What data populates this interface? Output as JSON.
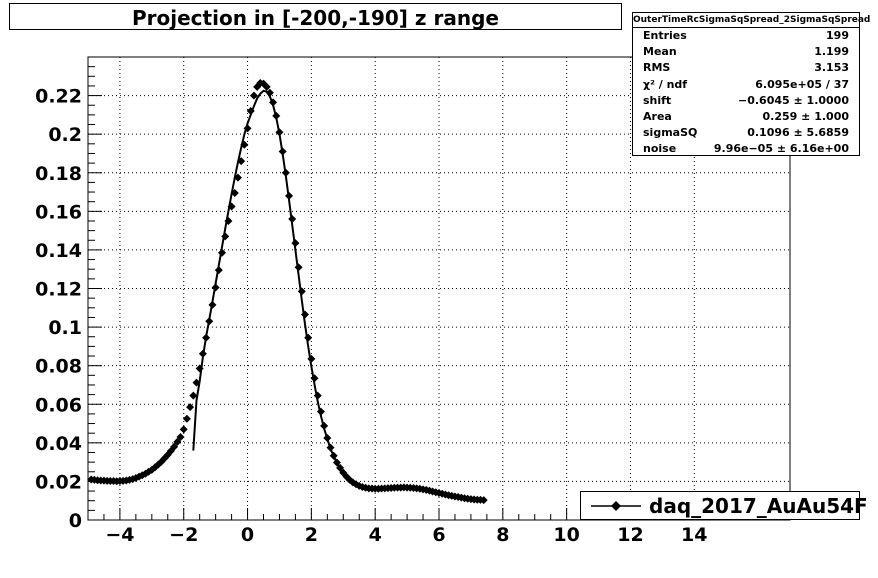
{
  "title": "Projection in [-200,-190] z range",
  "stats": {
    "name": "OuterTimeRcSigmaSqSpread_2SigmaSqSpread",
    "rows": [
      {
        "label": "Entries",
        "value": "199"
      },
      {
        "label": "Mean",
        "value": "1.199"
      },
      {
        "label": "RMS",
        "value": "3.153"
      },
      {
        "label": "χ² / ndf",
        "value": "6.095e+05 / 37"
      },
      {
        "label": "shift",
        "value": "−0.6045 ± 1.0000"
      },
      {
        "label": "Area",
        "value": "0.259 ± 1.000"
      },
      {
        "label": "sigmaSQ",
        "value": "0.1096 ± 5.6859"
      },
      {
        "label": "noise",
        "value": "9.96e−05 ± 6.16e+00"
      }
    ]
  },
  "legend": {
    "label": "daq_2017_AuAu54F"
  },
  "chart_data": {
    "type": "scatter",
    "title": "Projection in [-200,-190] z range",
    "xlim": [
      -5,
      17
    ],
    "ylim": [
      0,
      0.24
    ],
    "grid": true,
    "legend_position": "bottom-right",
    "x_ticks": [
      -4,
      -2,
      0,
      2,
      4,
      6,
      8,
      10,
      12,
      14
    ],
    "x_tick_labels": [
      "−4",
      "−2",
      "0",
      "2",
      "4",
      "6",
      "8",
      "10",
      "12",
      "14"
    ],
    "y_ticks": [
      0,
      0.02,
      0.04,
      0.06,
      0.08,
      0.1,
      0.12,
      0.14,
      0.16,
      0.18,
      0.2,
      0.22
    ],
    "y_tick_labels": [
      "0",
      "0.02",
      "0.04",
      "0.06",
      "0.08",
      "0.1",
      "0.12",
      "0.14",
      "0.16",
      "0.18",
      "0.2",
      "0.22"
    ],
    "series": [
      {
        "name": "daq_2017_AuAu54F",
        "kind": "markers",
        "points": [
          [
            -4.9,
            0.021
          ],
          [
            -4.8,
            0.0208
          ],
          [
            -4.7,
            0.0206
          ],
          [
            -4.6,
            0.0205
          ],
          [
            -4.5,
            0.0204
          ],
          [
            -4.4,
            0.0203
          ],
          [
            -4.3,
            0.0202
          ],
          [
            -4.2,
            0.0202
          ],
          [
            -4.1,
            0.0201
          ],
          [
            -4.0,
            0.0202
          ],
          [
            -3.9,
            0.0203
          ],
          [
            -3.8,
            0.0205
          ],
          [
            -3.7,
            0.0208
          ],
          [
            -3.6,
            0.0212
          ],
          [
            -3.5,
            0.0218
          ],
          [
            -3.4,
            0.0225
          ],
          [
            -3.3,
            0.0232
          ],
          [
            -3.2,
            0.024
          ],
          [
            -3.1,
            0.025
          ],
          [
            -3.0,
            0.026
          ],
          [
            -2.9,
            0.0273
          ],
          [
            -2.8,
            0.0287
          ],
          [
            -2.7,
            0.0302
          ],
          [
            -2.6,
            0.032
          ],
          [
            -2.5,
            0.0338
          ],
          [
            -2.4,
            0.0358
          ],
          [
            -2.3,
            0.038
          ],
          [
            -2.2,
            0.0405
          ],
          [
            -2.1,
            0.043
          ],
          [
            -2.0,
            0.047
          ],
          [
            -1.9,
            0.0525
          ],
          [
            -1.8,
            0.0585
          ],
          [
            -1.7,
            0.0645
          ],
          [
            -1.6,
            0.0712
          ],
          [
            -1.5,
            0.0785
          ],
          [
            -1.4,
            0.0862
          ],
          [
            -1.3,
            0.0945
          ],
          [
            -1.2,
            0.103
          ],
          [
            -1.1,
            0.1115
          ],
          [
            -1.0,
            0.1205
          ],
          [
            -0.9,
            0.1295
          ],
          [
            -0.8,
            0.1385
          ],
          [
            -0.7,
            0.147
          ],
          [
            -0.6,
            0.155
          ],
          [
            -0.5,
            0.1625
          ],
          [
            -0.4,
            0.1695
          ],
          [
            -0.3,
            0.1775
          ],
          [
            -0.2,
            0.186
          ],
          [
            -0.1,
            0.1945
          ],
          [
            0.0,
            0.203
          ],
          [
            0.1,
            0.212
          ],
          [
            0.2,
            0.22
          ],
          [
            0.3,
            0.2245
          ],
          [
            0.4,
            0.2265
          ],
          [
            0.5,
            0.2262
          ],
          [
            0.6,
            0.2245
          ],
          [
            0.7,
            0.2215
          ],
          [
            0.8,
            0.2165
          ],
          [
            0.9,
            0.2095
          ],
          [
            1.0,
            0.201
          ],
          [
            1.1,
            0.191
          ],
          [
            1.2,
            0.18
          ],
          [
            1.3,
            0.168
          ],
          [
            1.4,
            0.156
          ],
          [
            1.5,
            0.1435
          ],
          [
            1.6,
            0.131
          ],
          [
            1.7,
            0.1185
          ],
          [
            1.8,
            0.1065
          ],
          [
            1.9,
            0.0945
          ],
          [
            2.0,
            0.0835
          ],
          [
            2.1,
            0.0735
          ],
          [
            2.2,
            0.0645
          ],
          [
            2.3,
            0.0562
          ],
          [
            2.4,
            0.0488
          ],
          [
            2.5,
            0.0425
          ],
          [
            2.6,
            0.0375
          ],
          [
            2.7,
            0.0333
          ],
          [
            2.8,
            0.0298
          ],
          [
            2.9,
            0.027
          ],
          [
            3.0,
            0.0245
          ],
          [
            3.1,
            0.0225
          ],
          [
            3.2,
            0.0208
          ],
          [
            3.3,
            0.0195
          ],
          [
            3.4,
            0.0185
          ],
          [
            3.5,
            0.0177
          ],
          [
            3.6,
            0.0171
          ],
          [
            3.7,
            0.0167
          ],
          [
            3.8,
            0.0164
          ],
          [
            3.9,
            0.0163
          ],
          [
            4.0,
            0.0162
          ],
          [
            4.1,
            0.0162
          ],
          [
            4.2,
            0.0163
          ],
          [
            4.3,
            0.0164
          ],
          [
            4.4,
            0.0165
          ],
          [
            4.5,
            0.0166
          ],
          [
            4.6,
            0.0167
          ],
          [
            4.7,
            0.0168
          ],
          [
            4.8,
            0.0168
          ],
          [
            4.9,
            0.0169
          ],
          [
            5.0,
            0.0168
          ],
          [
            5.1,
            0.0167
          ],
          [
            5.2,
            0.0166
          ],
          [
            5.3,
            0.0164
          ],
          [
            5.4,
            0.0162
          ],
          [
            5.5,
            0.0159
          ],
          [
            5.6,
            0.0156
          ],
          [
            5.7,
            0.0152
          ],
          [
            5.8,
            0.0148
          ],
          [
            5.9,
            0.0144
          ],
          [
            6.0,
            0.014
          ],
          [
            6.1,
            0.0136
          ],
          [
            6.2,
            0.0132
          ],
          [
            6.3,
            0.0128
          ],
          [
            6.4,
            0.0125
          ],
          [
            6.5,
            0.0122
          ],
          [
            6.6,
            0.0119
          ],
          [
            6.7,
            0.0116
          ],
          [
            6.8,
            0.0113
          ],
          [
            6.9,
            0.011
          ],
          [
            7.0,
            0.0108
          ],
          [
            7.1,
            0.0106
          ],
          [
            7.2,
            0.0105
          ],
          [
            7.3,
            0.0104
          ],
          [
            7.4,
            0.0103
          ]
        ]
      },
      {
        "name": "fit",
        "kind": "line",
        "points": [
          [
            -1.7,
            0.036
          ],
          [
            -1.6,
            0.062
          ],
          [
            -1.5,
            0.072
          ],
          [
            -1.4,
            0.0845
          ],
          [
            -1.3,
            0.095
          ],
          [
            -1.2,
            0.104
          ],
          [
            -1.1,
            0.113
          ],
          [
            -1.0,
            0.1225
          ],
          [
            -0.9,
            0.132
          ],
          [
            -0.8,
            0.1415
          ],
          [
            -0.7,
            0.151
          ],
          [
            -0.6,
            0.16
          ],
          [
            -0.5,
            0.169
          ],
          [
            -0.4,
            0.1775
          ],
          [
            -0.3,
            0.1855
          ],
          [
            -0.2,
            0.193
          ],
          [
            -0.1,
            0.2
          ],
          [
            0.0,
            0.2055
          ],
          [
            0.1,
            0.21
          ],
          [
            0.2,
            0.2145
          ],
          [
            0.3,
            0.2185
          ],
          [
            0.4,
            0.221
          ],
          [
            0.5,
            0.2225
          ],
          [
            0.6,
            0.222
          ],
          [
            0.7,
            0.2195
          ],
          [
            0.8,
            0.215
          ],
          [
            0.9,
            0.2085
          ],
          [
            1.0,
            0.2
          ],
          [
            1.1,
            0.19
          ],
          [
            1.2,
            0.1785
          ],
          [
            1.3,
            0.166
          ],
          [
            1.4,
            0.153
          ],
          [
            1.5,
            0.14
          ],
          [
            1.6,
            0.127
          ],
          [
            1.7,
            0.114
          ],
          [
            1.8,
            0.1015
          ],
          [
            1.9,
            0.09
          ],
          [
            2.0,
            0.0795
          ],
          [
            2.1,
            0.07
          ],
          [
            2.2,
            0.0615
          ],
          [
            2.3,
            0.054
          ],
          [
            2.4,
            0.0475
          ],
          [
            2.5,
            0.042
          ],
          [
            2.6,
            0.037
          ],
          [
            2.7,
            0.033
          ],
          [
            2.8,
            0.0295
          ],
          [
            2.9,
            0.0265
          ],
          [
            3.0,
            0.024
          ],
          [
            3.1,
            0.0218
          ],
          [
            3.2,
            0.02
          ],
          [
            3.3,
            0.0185
          ],
          [
            3.4,
            0.0175
          ]
        ]
      }
    ]
  }
}
